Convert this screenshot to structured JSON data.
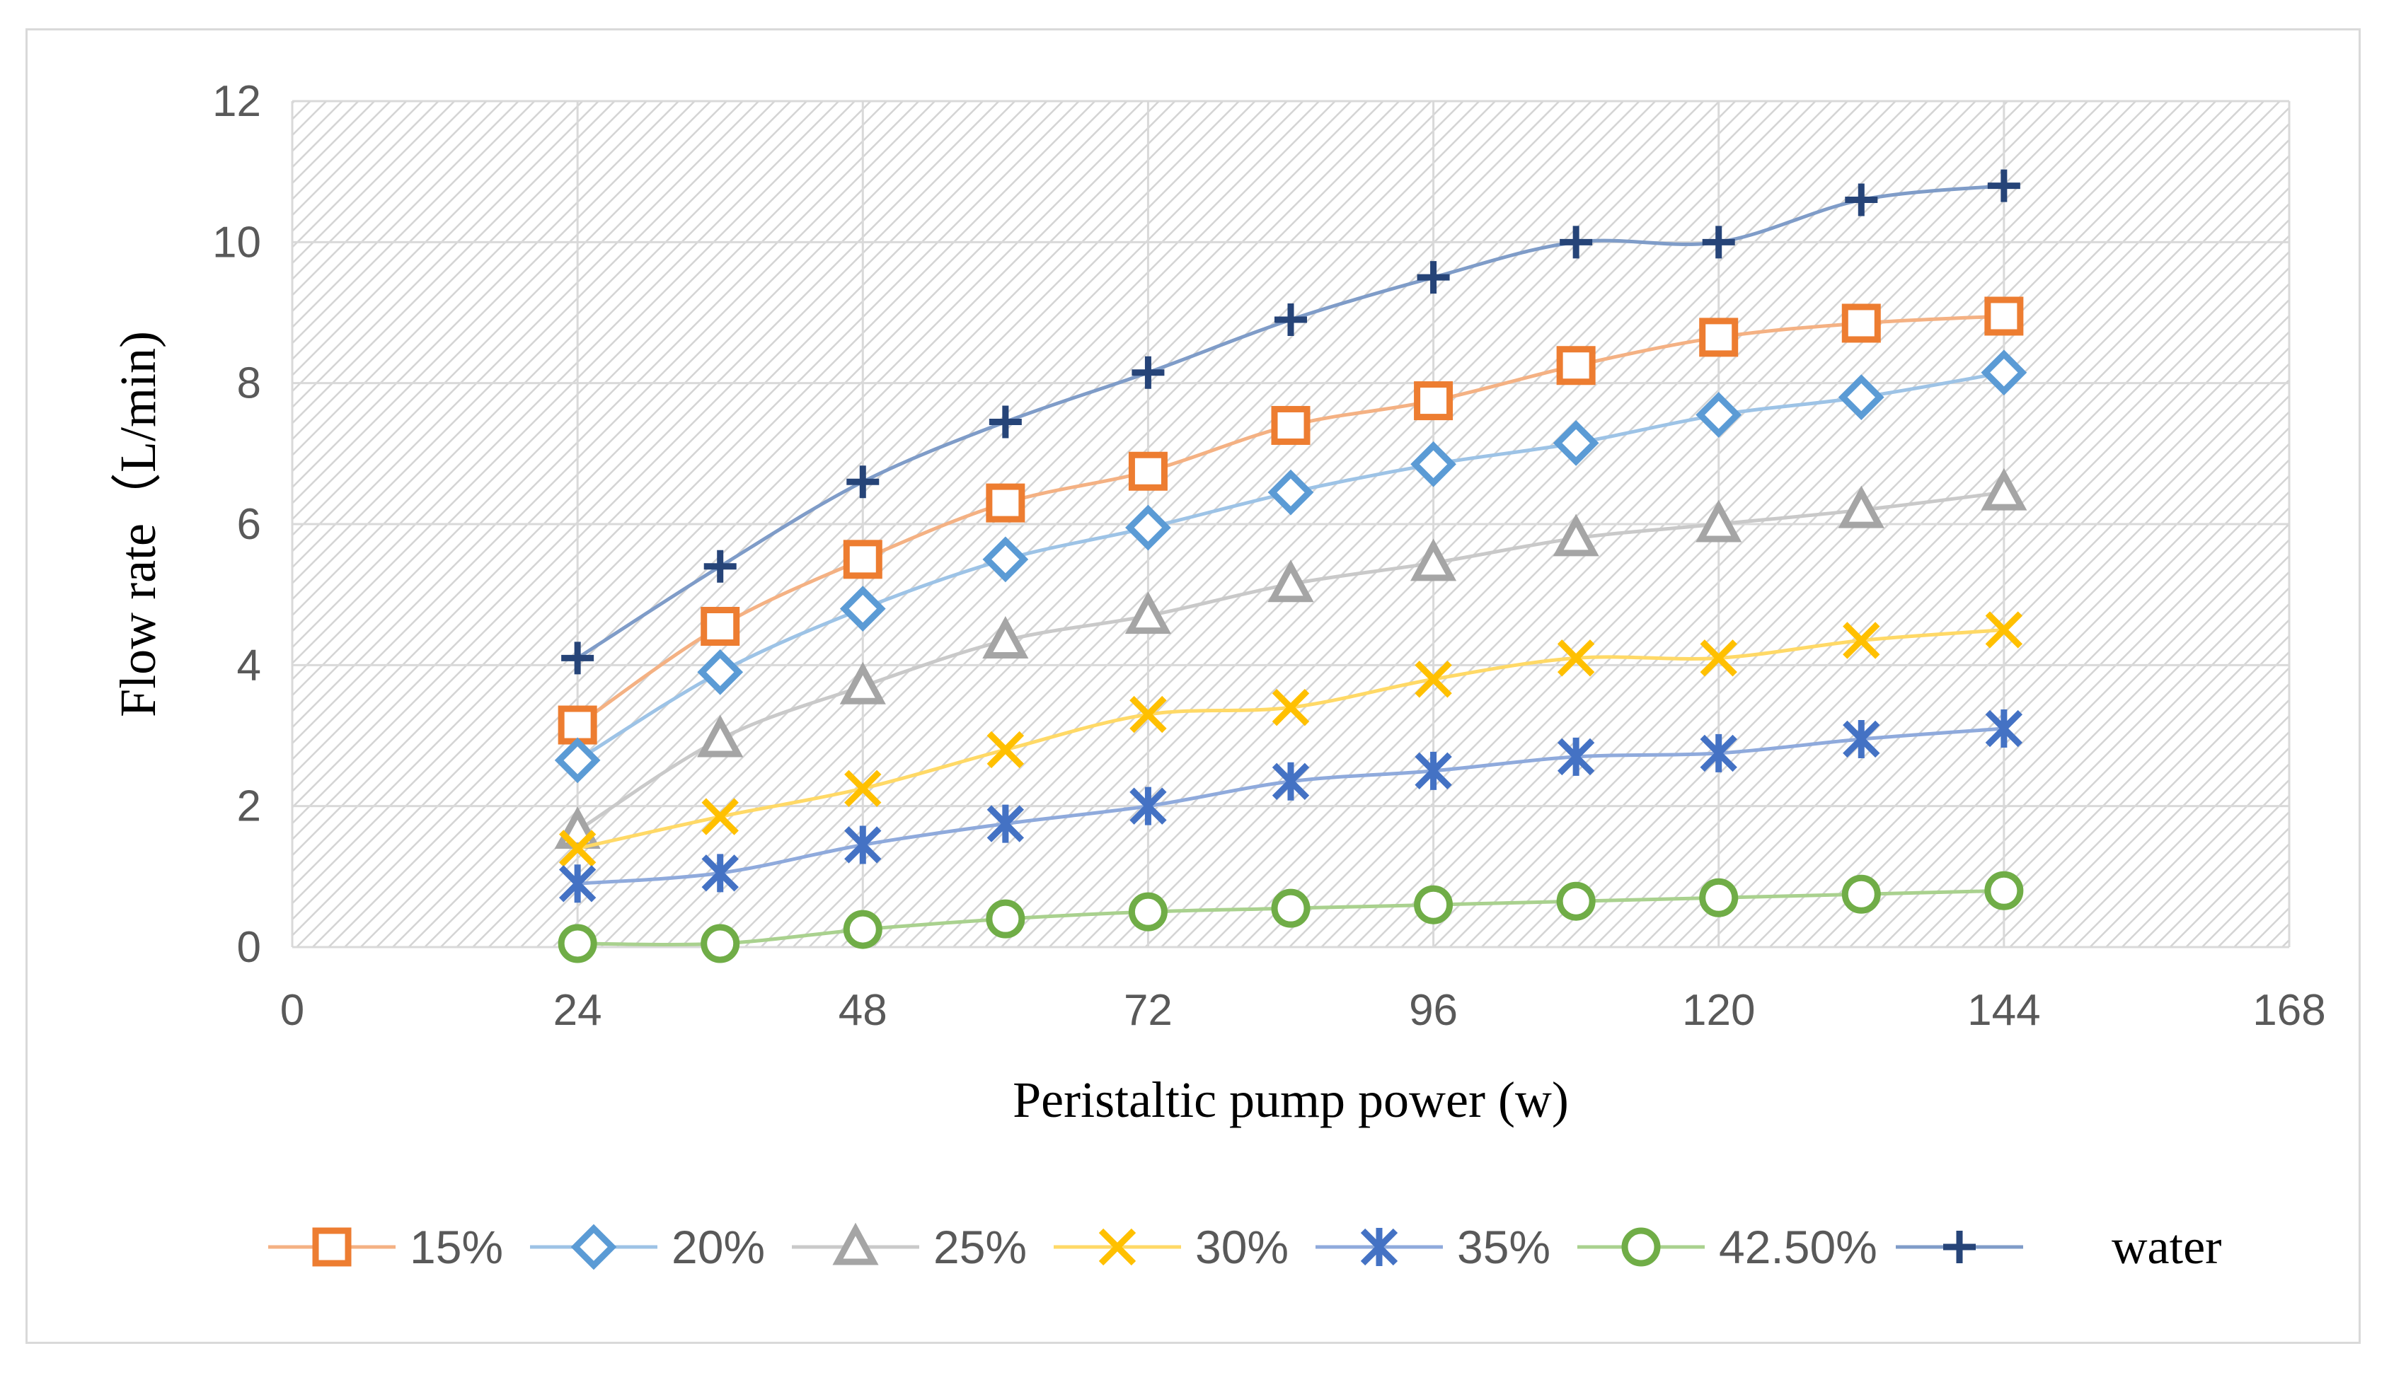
{
  "chart_data": {
    "type": "line",
    "title": "",
    "xlabel": "Peristaltic pump power (w)",
    "ylabel": "Flow rate（L/min)",
    "xlim": [
      0,
      168
    ],
    "ylim": [
      0,
      12
    ],
    "x_ticks": [
      0,
      24,
      48,
      72,
      96,
      120,
      144,
      168
    ],
    "y_ticks": [
      0,
      2,
      4,
      6,
      8,
      10,
      12
    ],
    "grid": true,
    "legend_position": "bottom",
    "x": [
      24,
      36,
      48,
      60,
      72,
      84,
      96,
      108,
      120,
      132,
      144
    ],
    "series": [
      {
        "name": "15%",
        "marker": "square",
        "color": "#ED7D31",
        "line_color": "#F4B183",
        "values": [
          3.15,
          4.55,
          5.5,
          6.3,
          6.75,
          7.4,
          7.75,
          8.25,
          8.65,
          8.85,
          8.95
        ]
      },
      {
        "name": "20%",
        "marker": "diamond",
        "color": "#5B9BD5",
        "line_color": "#9DC3E6",
        "values": [
          2.65,
          3.9,
          4.8,
          5.5,
          5.95,
          6.45,
          6.85,
          7.15,
          7.55,
          7.8,
          8.15
        ]
      },
      {
        "name": "25%",
        "marker": "triangle",
        "color": "#A5A5A5",
        "line_color": "#C9C9C9",
        "values": [
          1.65,
          2.95,
          3.7,
          4.35,
          4.7,
          5.15,
          5.45,
          5.8,
          6.0,
          6.2,
          6.45
        ]
      },
      {
        "name": "30%",
        "marker": "x",
        "color": "#FFC000",
        "line_color": "#FFD966",
        "values": [
          1.4,
          1.85,
          2.25,
          2.8,
          3.3,
          3.4,
          3.8,
          4.1,
          4.1,
          4.35,
          4.5
        ]
      },
      {
        "name": "35%",
        "marker": "star",
        "color": "#4472C4",
        "line_color": "#8FAADC",
        "values": [
          0.9,
          1.05,
          1.45,
          1.75,
          2.0,
          2.35,
          2.5,
          2.7,
          2.75,
          2.95,
          3.1
        ]
      },
      {
        "name": "42.50%",
        "marker": "circle",
        "color": "#70AD47",
        "line_color": "#A9D18E",
        "values": [
          0.05,
          0.05,
          0.25,
          0.4,
          0.5,
          0.55,
          0.6,
          0.65,
          0.7,
          0.75,
          0.8
        ]
      },
      {
        "name": "water",
        "marker": "plus",
        "color": "#264478",
        "line_color": "#7F9CC8",
        "values": [
          4.1,
          5.4,
          6.6,
          7.45,
          8.15,
          8.9,
          9.5,
          10.0,
          10.0,
          10.6,
          10.8
        ]
      }
    ]
  }
}
